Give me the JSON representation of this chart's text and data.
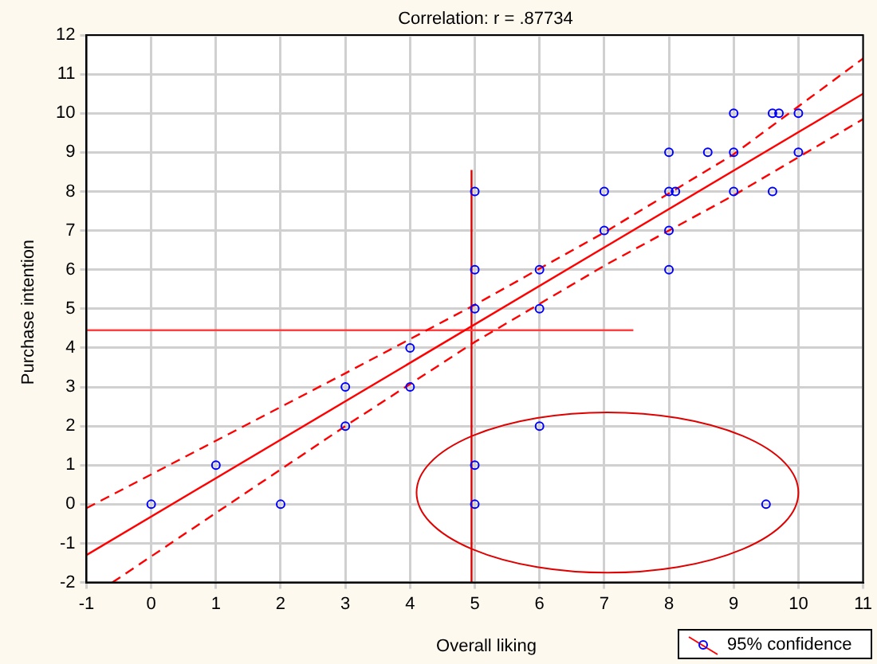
{
  "chart_data": {
    "type": "scatter",
    "title": "Correlation: r = .87734",
    "xlabel": "Overall liking",
    "ylabel": "Purchase intention",
    "xlim": [
      -1,
      11
    ],
    "xticks": [
      -1,
      0,
      1,
      2,
      3,
      4,
      5,
      6,
      7,
      8,
      9,
      10,
      11
    ],
    "ylim": [
      -2,
      12
    ],
    "yticks": [
      -2,
      -1,
      0,
      1,
      2,
      3,
      4,
      5,
      6,
      7,
      8,
      9,
      10,
      11,
      12
    ],
    "grid": true,
    "legend": "bottom right",
    "series": [
      {
        "type": "scatter",
        "color": "#0000ff",
        "marker": "circle",
        "x": [
          0,
          1,
          2,
          3,
          3,
          4,
          4,
          5,
          5,
          5,
          5,
          5,
          6,
          6,
          6,
          7,
          7,
          8,
          8,
          8,
          8,
          8.1,
          8.6,
          9,
          9,
          9,
          9.5,
          9.6,
          9.6,
          9.7,
          10,
          10
        ],
        "values": [
          0,
          1,
          0,
          3,
          2,
          4,
          3,
          8,
          6,
          5,
          1,
          0,
          6,
          5,
          2,
          8,
          7,
          9,
          8,
          7,
          6,
          8,
          9,
          10,
          9,
          8,
          0,
          10,
          8,
          10,
          10,
          9
        ]
      },
      {
        "type": "line",
        "name": "95% confidence",
        "color": "#ff0000",
        "marker": "none",
        "line_style": "solid",
        "x": [
          -1,
          11
        ],
        "values": [
          -1.3,
          10.5
        ]
      },
      {
        "type": "line",
        "color": "#ff0000",
        "marker": "none",
        "line_style": "dashed",
        "x": [
          -1,
          3,
          5,
          7,
          9,
          11
        ],
        "values": [
          -0.1,
          3.35,
          5.1,
          6.95,
          8.95,
          11.4
        ]
      },
      {
        "type": "line",
        "color": "#ff0000",
        "marker": "none",
        "line_style": "dashed",
        "x": [
          -0.6,
          3,
          5,
          7,
          9,
          11
        ],
        "values": [
          -2,
          2,
          4.15,
          6.1,
          7.9,
          9.85
        ]
      },
      {
        "type": "line",
        "color": "#ff4040",
        "marker": "none",
        "line_style": "solid",
        "x": [
          -1,
          7.45
        ],
        "values": [
          4.45,
          4.45
        ]
      },
      {
        "type": "line",
        "color": "#dd0000",
        "marker": "none",
        "line_style": "solid",
        "x": [
          4.95,
          4.95
        ],
        "values": [
          -2,
          8.55
        ]
      }
    ]
  }
}
